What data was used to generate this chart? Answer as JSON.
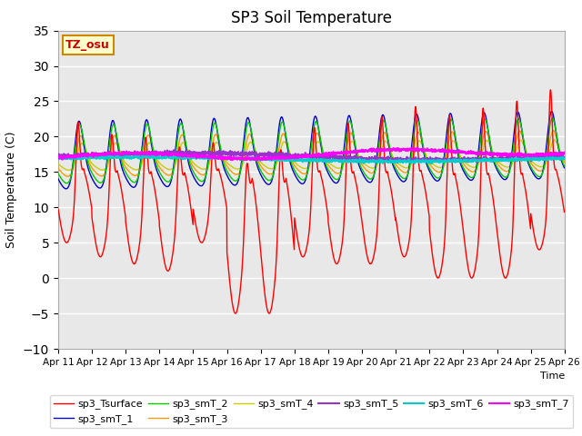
{
  "title": "SP3 Soil Temperature",
  "xlabel": "Time",
  "ylabel": "Soil Temperature (C)",
  "ylim": [
    -10,
    35
  ],
  "yticks": [
    -10,
    -5,
    0,
    5,
    10,
    15,
    20,
    25,
    30,
    35
  ],
  "xtick_labels": [
    "Apr 11",
    "Apr 12",
    "Apr 13",
    "Apr 14",
    "Apr 15",
    "Apr 16",
    "Apr 17",
    "Apr 18",
    "Apr 19",
    "Apr 20",
    "Apr 21",
    "Apr 22",
    "Apr 23",
    "Apr 24",
    "Apr 25",
    "Apr 26"
  ],
  "annotation_text": "TZ_osu",
  "annotation_color": "#cc0000",
  "annotation_bg": "#ffffcc",
  "annotation_border": "#cc8800",
  "series_colors": {
    "sp3_Tsurface": "#ff0000",
    "sp3_smT_1": "#0000cc",
    "sp3_smT_2": "#00cc00",
    "sp3_smT_3": "#ff9900",
    "sp3_smT_4": "#cccc00",
    "sp3_smT_5": "#9933cc",
    "sp3_smT_6": "#00cccc",
    "sp3_smT_7": "#ff00ff"
  },
  "bg_outer": "#d8d8d8",
  "bg_inner": "#e8e8e8",
  "grid_color": "#ffffff",
  "title_fontsize": 12,
  "n_days": 15,
  "pts_per_day": 144
}
